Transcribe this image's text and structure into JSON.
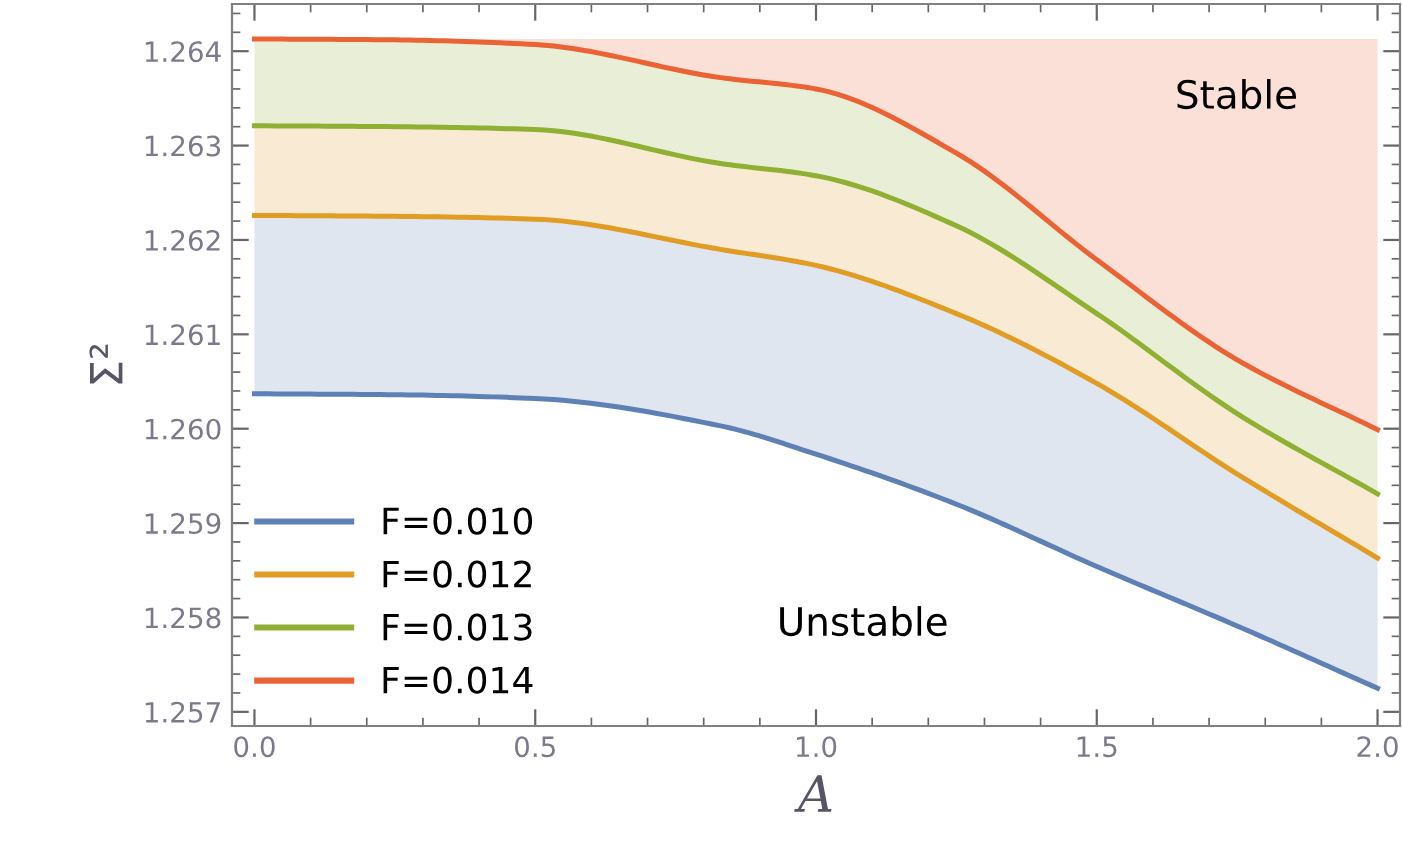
{
  "chart_data": {
    "type": "line",
    "xlabel": "A",
    "ylabel": "Σ²",
    "x": [
      0,
      0.25,
      0.5,
      0.83,
      1.0,
      1.25,
      1.5,
      1.75,
      2.0
    ],
    "series": [
      {
        "name": "F=0.010",
        "color": "#5e81b5",
        "values": [
          1.26037,
          1.26036,
          1.26032,
          1.26003,
          1.25973,
          1.2592,
          1.25854,
          1.25791,
          1.25725
        ],
        "lower": [
          1.26037,
          1.26036,
          1.26032,
          1.26003,
          1.25973,
          1.2592,
          1.25854,
          1.25791,
          1.25725
        ],
        "upper": [
          1.26226,
          1.26225,
          1.26222,
          1.2619,
          1.26173,
          1.26122,
          1.26048,
          1.25952,
          1.25863
        ]
      },
      {
        "name": "F=0.012",
        "color": "#e19c24",
        "values": [
          1.26226,
          1.26225,
          1.26222,
          1.2619,
          1.26173,
          1.26122,
          1.26048,
          1.25952,
          1.25863
        ],
        "lower": [
          1.26226,
          1.26225,
          1.26222,
          1.2619,
          1.26173,
          1.26122,
          1.26048,
          1.25952,
          1.25863
        ],
        "upper": [
          1.26321,
          1.2632,
          1.26317,
          1.26281,
          1.26268,
          1.26215,
          1.26122,
          1.26016,
          1.25931
        ]
      },
      {
        "name": "F=0.013",
        "color": "#8fb032",
        "values": [
          1.26321,
          1.2632,
          1.26317,
          1.26281,
          1.26268,
          1.26215,
          1.26122,
          1.26016,
          1.25931
        ],
        "lower": [
          1.26321,
          1.2632,
          1.26317,
          1.26281,
          1.26268,
          1.26215,
          1.26122,
          1.26016,
          1.25931
        ],
        "upper": [
          1.26413,
          1.26412,
          1.26407,
          1.26372,
          1.2636,
          1.26292,
          1.26179,
          1.26073,
          1.25999
        ]
      },
      {
        "name": "F=0.014",
        "color": "#eb6235",
        "values": [
          1.26413,
          1.26412,
          1.26407,
          1.26372,
          1.2636,
          1.26292,
          1.26179,
          1.26073,
          1.25999
        ],
        "lower": [
          1.26413,
          1.26412,
          1.26407,
          1.26372,
          1.2636,
          1.26292,
          1.26179,
          1.26073,
          1.25999
        ],
        "upper": [
          1.26413,
          1.26413,
          1.26413,
          1.26413,
          1.26413,
          1.26413,
          1.26413,
          1.26413,
          1.26413
        ]
      }
    ],
    "xlim": [
      -0.04,
      2.04
    ],
    "ylim": [
      1.25685,
      1.2645
    ],
    "xticks": [
      {
        "value": 0,
        "label": "0.0"
      },
      {
        "value": 0.5,
        "label": "0.5"
      },
      {
        "value": 1.0,
        "label": "1.0"
      },
      {
        "value": 1.5,
        "label": "1.5"
      },
      {
        "value": 2.0,
        "label": "2.0"
      }
    ],
    "yticks": [
      1.257,
      1.258,
      1.259,
      {
        "value": 1.26,
        "label": "1.260"
      },
      1.261,
      1.262,
      1.263,
      1.264
    ],
    "annotations": [
      "Stable",
      "Unstable"
    ],
    "legend": "bottom left",
    "grid": false,
    "marker": "none",
    "line_style": "solid"
  }
}
